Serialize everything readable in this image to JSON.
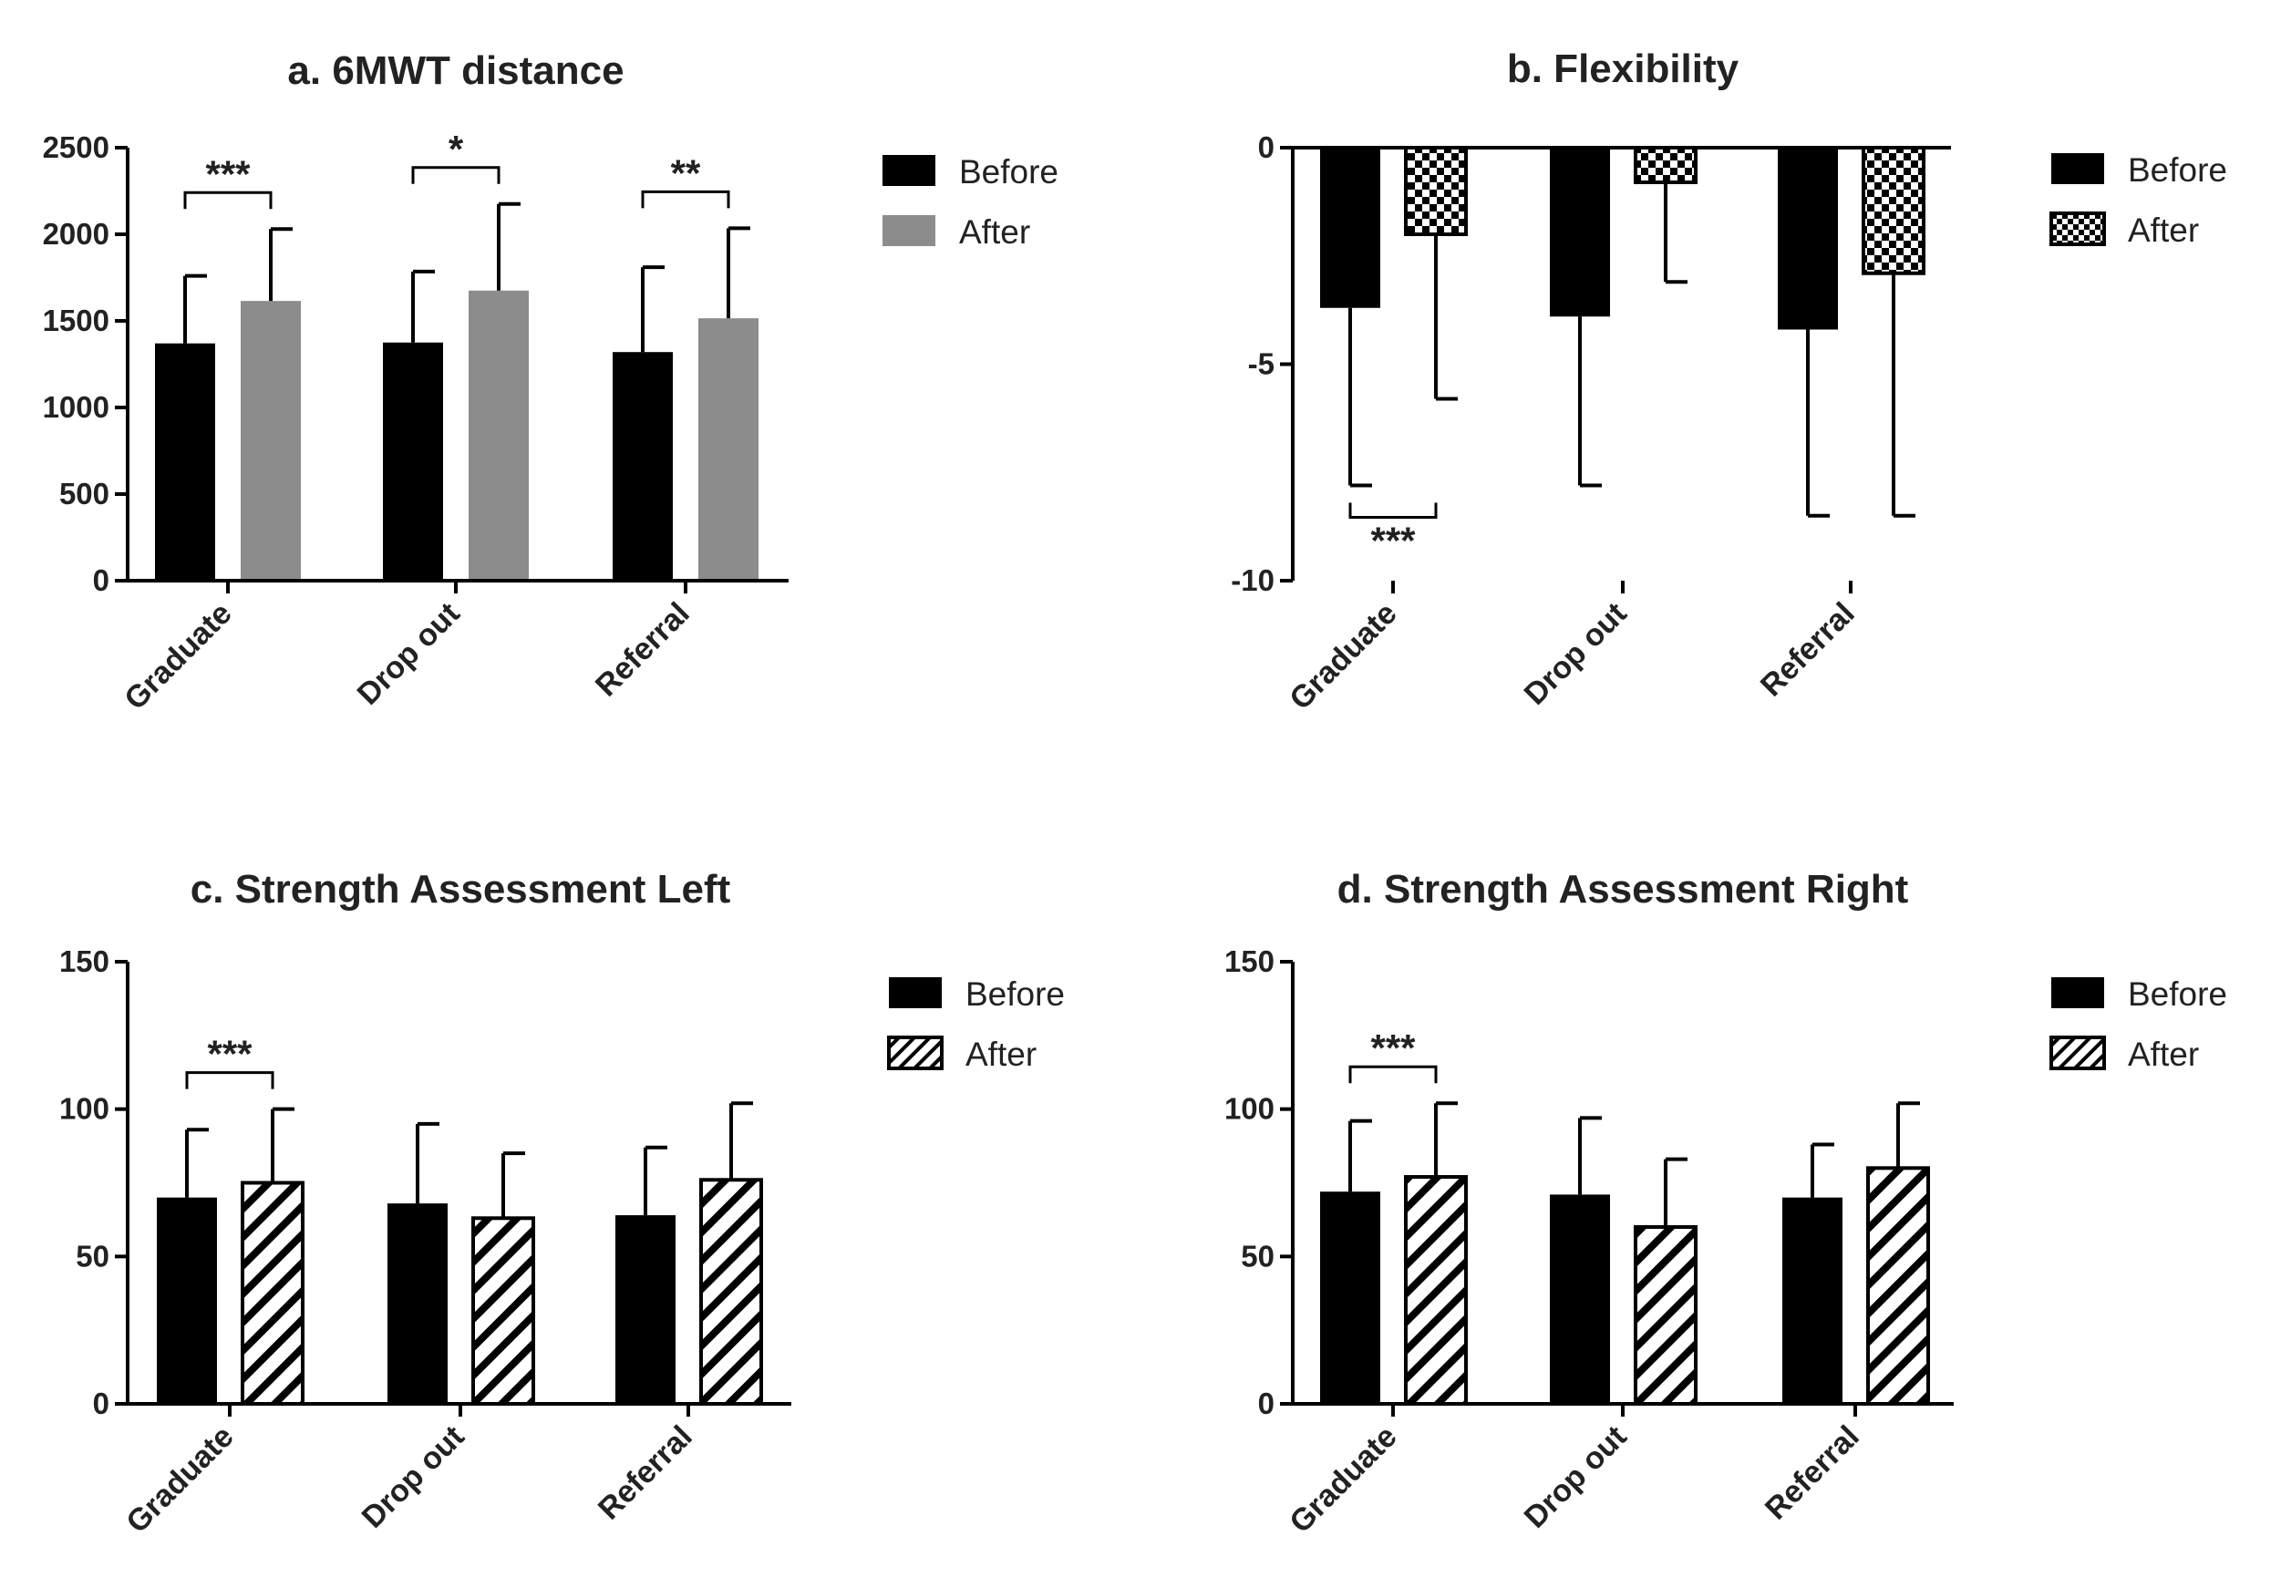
{
  "figure": {
    "colors": {
      "before": "#000000",
      "after_gray": "#8c8c8c",
      "axis": "#000000"
    },
    "legend": {
      "before": "Before",
      "after": "After"
    }
  },
  "chart_data": [
    {
      "id": "a",
      "type": "bar",
      "title": "a. 6MWT distance",
      "categories": [
        "Graduate",
        "Drop out",
        "Referral"
      ],
      "series": [
        {
          "name": "Before",
          "values": [
            1370,
            1375,
            1320
          ],
          "error": [
            390,
            410,
            490
          ]
        },
        {
          "name": "After",
          "values": [
            1615,
            1675,
            1515
          ],
          "error": [
            415,
            500,
            520
          ]
        }
      ],
      "after_pattern": "gray",
      "ylim": [
        0,
        2500
      ],
      "yticks": [
        0,
        500,
        1000,
        1500,
        2000,
        2500
      ],
      "ytick_labels": [
        "0",
        "500",
        "1000",
        "1500",
        "2000",
        "2500"
      ],
      "significance": [
        {
          "category": 0,
          "label": "***",
          "position": "above"
        },
        {
          "category": 1,
          "label": "*",
          "position": "above"
        },
        {
          "category": 2,
          "label": "**",
          "position": "above"
        }
      ],
      "legend": [
        "Before",
        "After"
      ]
    },
    {
      "id": "b",
      "type": "bar",
      "title": "b. Flexibility",
      "categories": [
        "Graduate",
        "Drop out",
        "Referral"
      ],
      "series": [
        {
          "name": "Before",
          "values": [
            -3.7,
            -3.9,
            -4.2
          ],
          "error": [
            4.1,
            3.9,
            4.3
          ]
        },
        {
          "name": "After",
          "values": [
            -2.0,
            -0.8,
            -2.9
          ],
          "error": [
            3.8,
            2.3,
            5.6
          ]
        }
      ],
      "after_pattern": "checker",
      "ylim": [
        -10,
        0
      ],
      "yticks": [
        -10,
        -5,
        0
      ],
      "ytick_labels": [
        "-10",
        "-5",
        "0"
      ],
      "significance": [
        {
          "category": 0,
          "label": "***",
          "position": "below"
        }
      ],
      "legend": [
        "Before",
        "After"
      ]
    },
    {
      "id": "c",
      "type": "bar",
      "title": "c. Strength Assessment Left",
      "categories": [
        "Graduate",
        "Drop out",
        "Referral"
      ],
      "series": [
        {
          "name": "Before",
          "values": [
            70,
            68,
            64
          ],
          "error": [
            23,
            27,
            23
          ]
        },
        {
          "name": "After",
          "values": [
            75,
            63,
            76
          ],
          "error": [
            25,
            22,
            26
          ]
        }
      ],
      "after_pattern": "hatch",
      "ylim": [
        0,
        150
      ],
      "yticks": [
        0,
        50,
        100,
        150
      ],
      "ytick_labels": [
        "0",
        "50",
        "100",
        "150"
      ],
      "significance": [
        {
          "category": 0,
          "label": "***",
          "position": "above"
        }
      ],
      "legend": [
        "Before",
        "After"
      ]
    },
    {
      "id": "d",
      "type": "bar",
      "title": "d. Strength Assessment Right",
      "categories": [
        "Graduate",
        "Drop out",
        "Referral"
      ],
      "series": [
        {
          "name": "Before",
          "values": [
            72,
            71,
            70
          ],
          "error": [
            24,
            26,
            18
          ]
        },
        {
          "name": "After",
          "values": [
            77,
            60,
            80
          ],
          "error": [
            25,
            23,
            22
          ]
        }
      ],
      "after_pattern": "hatch",
      "ylim": [
        0,
        150
      ],
      "yticks": [
        0,
        50,
        100,
        150
      ],
      "ytick_labels": [
        "0",
        "50",
        "100",
        "150"
      ],
      "significance": [
        {
          "category": 0,
          "label": "***",
          "position": "above"
        }
      ],
      "legend": [
        "Before",
        "After"
      ]
    }
  ]
}
